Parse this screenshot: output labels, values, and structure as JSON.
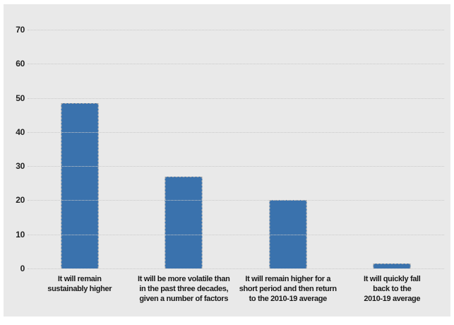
{
  "chart_data": {
    "type": "bar",
    "title": "",
    "xlabel": "",
    "ylabel": "",
    "categories": [
      [
        "It will remain",
        "sustainably higher"
      ],
      [
        "It will be more volatile than",
        "in the past three decades,",
        "given a number of factors"
      ],
      [
        "It will remain higher for a",
        "short period and then return",
        "to the 2010-19 average"
      ],
      [
        "It will quickly fall",
        "back to the",
        "2010-19 average"
      ]
    ],
    "values": [
      48.5,
      27,
      20,
      1.5
    ],
    "ylim": [
      0,
      70
    ],
    "yticks": [
      0,
      10,
      20,
      30,
      40,
      50,
      60,
      70
    ],
    "grid": "horizontal-dotted",
    "legend": "none",
    "bar_color": "#3a72ad",
    "plot_background": "#e9e9e9",
    "page_background": "#ffffff",
    "gridline_color": "#c9c9c9"
  }
}
